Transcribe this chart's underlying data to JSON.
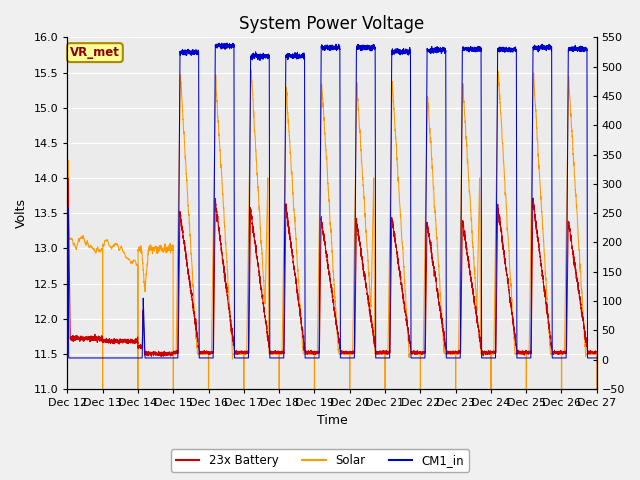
{
  "title": "System Power Voltage",
  "xlabel": "Time",
  "ylabel": "Volts",
  "ylim": [
    11.0,
    16.0
  ],
  "ylim2": [
    -50,
    550
  ],
  "yticks": [
    11.0,
    11.5,
    12.0,
    12.5,
    13.0,
    13.5,
    14.0,
    14.5,
    15.0,
    15.5,
    16.0
  ],
  "yticks2": [
    -50,
    0,
    50,
    100,
    150,
    200,
    250,
    300,
    350,
    400,
    450,
    500,
    550
  ],
  "xtick_labels": [
    "Dec 12",
    "Dec 13",
    "Dec 14",
    "Dec 15",
    "Dec 16",
    "Dec 17",
    "Dec 18",
    "Dec 19",
    "Dec 20",
    "Dec 21",
    "Dec 22",
    "Dec 23",
    "Dec 24",
    "Dec 25",
    "Dec 26",
    "Dec 27"
  ],
  "vr_met_label": "VR_met",
  "legend_entries": [
    "23x Battery",
    "Solar",
    "CM1_in"
  ],
  "bat_color": "#cc0000",
  "solar_color": "#ff9900",
  "cm1_color": "#0000cc",
  "bg_color": "#ebebeb",
  "grid_color": "#ffffff",
  "title_fontsize": 12,
  "axis_fontsize": 9,
  "tick_fontsize": 8
}
